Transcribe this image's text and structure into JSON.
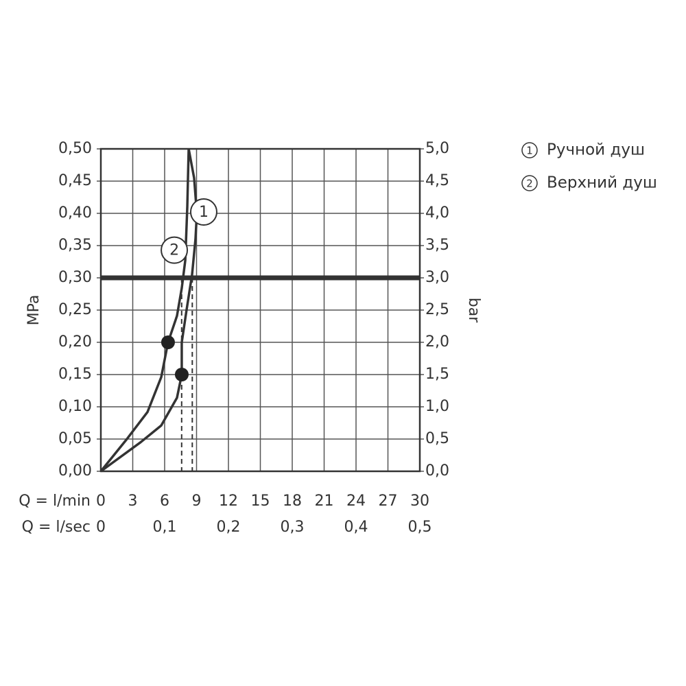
{
  "chart_data": {
    "type": "line",
    "y_title": "MPa",
    "y2_title": "bar",
    "x_row_label": "Q = l/min",
    "x2_row_label": "Q = l/sec",
    "xlim": [
      0,
      30
    ],
    "xticks": [
      0,
      3,
      6,
      9,
      12,
      15,
      18,
      21,
      24,
      27,
      30
    ],
    "x2lim": [
      0,
      0.5
    ],
    "x2ticks": [
      0,
      {
        "value": 0.1,
        "label": "0,1"
      },
      {
        "value": 0.2,
        "label": "0,2"
      },
      {
        "value": 0.3,
        "label": "0,3"
      },
      {
        "value": 0.4,
        "label": "0,4"
      },
      {
        "value": 0.5,
        "label": "0,5"
      }
    ],
    "ylim": [
      0,
      0.5
    ],
    "yticks": [
      {
        "value": 0,
        "label": "0,00"
      },
      {
        "value": 0.05,
        "label": "0,05"
      },
      {
        "value": 0.1,
        "label": "0,10"
      },
      {
        "value": 0.15,
        "label": "0,15"
      },
      {
        "value": 0.2,
        "label": "0,20"
      },
      {
        "value": 0.25,
        "label": "0,25"
      },
      {
        "value": 0.3,
        "label": "0,30"
      },
      {
        "value": 0.35,
        "label": "0,35"
      },
      {
        "value": 0.4,
        "label": "0,40"
      },
      {
        "value": 0.45,
        "label": "0,45"
      },
      {
        "value": 0.5,
        "label": "0,50"
      }
    ],
    "y2lim": [
      0,
      5
    ],
    "y2ticks": [
      {
        "value": 0,
        "label": "0,0"
      },
      {
        "value": 0.5,
        "label": "0,5"
      },
      {
        "value": 1,
        "label": "1,0"
      },
      {
        "value": 1.5,
        "label": "1,5"
      },
      {
        "value": 2,
        "label": "2,0"
      },
      {
        "value": 2.5,
        "label": "2,5"
      },
      {
        "value": 3,
        "label": "3,0"
      },
      {
        "value": 3.5,
        "label": "3,5"
      },
      {
        "value": 4,
        "label": "4,0"
      },
      {
        "value": 4.5,
        "label": "4,5"
      },
      {
        "value": 5,
        "label": "5,0"
      }
    ],
    "grid": true,
    "threshold": 0.3,
    "reference_x": [
      7.6,
      8.6
    ],
    "series": [
      {
        "name": "Ручной душ",
        "label": "1",
        "color": "#333333",
        "x": [
          0,
          3.74,
          5.68,
          7.16,
          7.61,
          7.61,
          8.06,
          8.58,
          8.9,
          9.03,
          8.77,
          8.26
        ],
        "values": [
          0,
          0.045,
          0.071,
          0.114,
          0.15,
          0.2,
          0.25,
          0.305,
          0.36,
          0.4,
          0.455,
          0.5
        ],
        "point": [
          7.61,
          0.15
        ]
      },
      {
        "name": "Верхний душ",
        "label": "2",
        "color": "#333333",
        "x": [
          0,
          2.45,
          4.39,
          5.68,
          6.32,
          7.16,
          7.61,
          7.94,
          8.13,
          8.26
        ],
        "values": [
          0,
          0.05,
          0.092,
          0.146,
          0.2,
          0.241,
          0.284,
          0.327,
          0.41,
          0.5
        ],
        "point": [
          6.32,
          0.2
        ]
      }
    ]
  }
}
